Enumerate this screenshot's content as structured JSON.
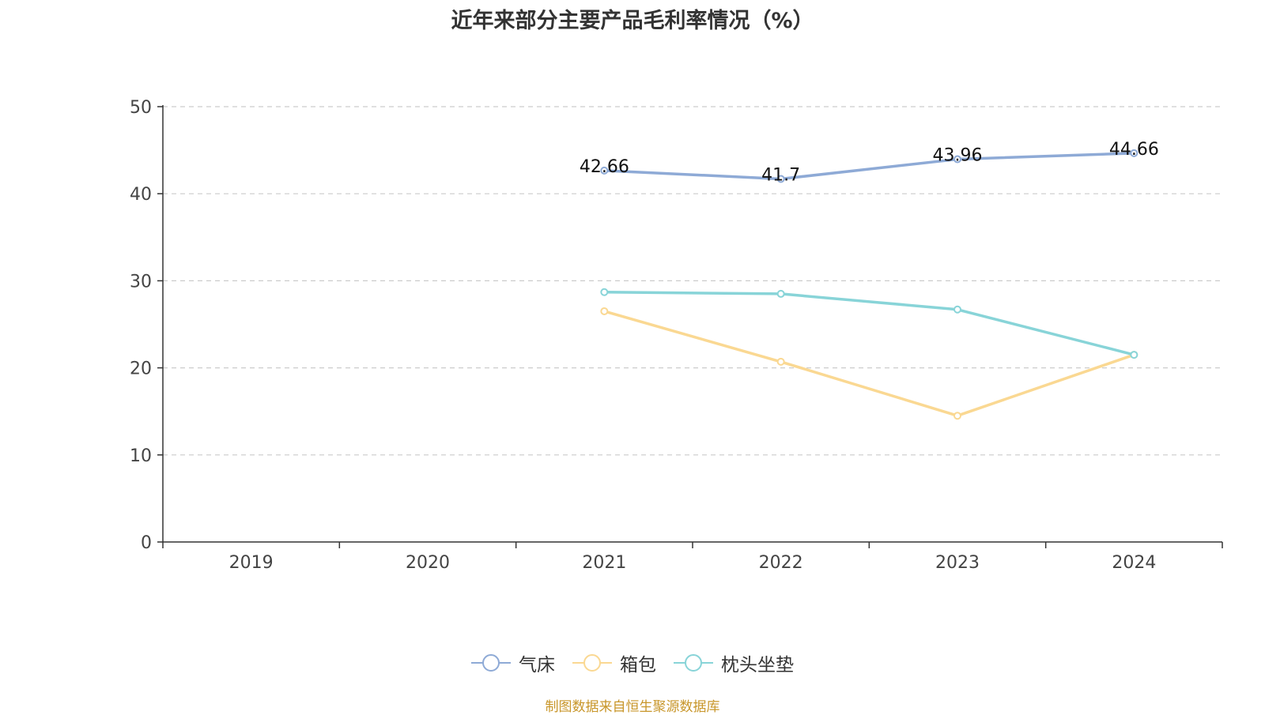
{
  "title": "近年来部分主要产品毛利率情况（%）",
  "source": "制图数据来自恒生聚源数据库",
  "chart_data": {
    "type": "line",
    "title": "近年来部分主要产品毛利率情况（%）",
    "categories": [
      "2019",
      "2020",
      "2021",
      "2022",
      "2023",
      "2024"
    ],
    "ylim": [
      0,
      50
    ],
    "yticks": [
      0,
      10,
      20,
      30,
      40,
      50
    ],
    "grid": "horizontal dashed",
    "legend_position": "bottom",
    "series": [
      {
        "name": "气床",
        "color": "#8eaad6",
        "values": [
          null,
          null,
          42.66,
          41.7,
          43.96,
          44.66
        ],
        "labels": [
          "",
          "",
          "42.66",
          "41.7",
          "43.96",
          "44.66"
        ]
      },
      {
        "name": "箱包",
        "color": "#fad892",
        "values": [
          null,
          null,
          26.5,
          20.7,
          14.5,
          21.5
        ],
        "labels": [
          "",
          "",
          "",
          "",
          "",
          ""
        ]
      },
      {
        "name": "枕头坐垫",
        "color": "#88d4d8",
        "values": [
          null,
          null,
          28.7,
          28.5,
          26.7,
          21.5
        ],
        "labels": [
          "",
          "",
          "",
          "",
          "",
          ""
        ]
      }
    ]
  }
}
